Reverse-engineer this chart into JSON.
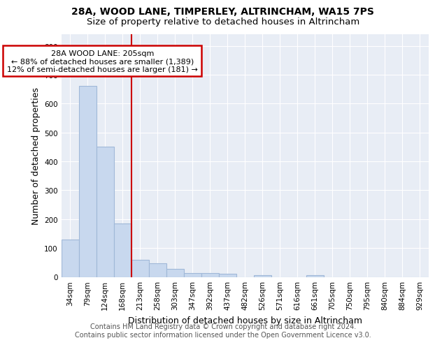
{
  "title_line1": "28A, WOOD LANE, TIMPERLEY, ALTRINCHAM, WA15 7PS",
  "title_line2": "Size of property relative to detached houses in Altrincham",
  "xlabel": "Distribution of detached houses by size in Altrincham",
  "ylabel": "Number of detached properties",
  "bar_labels": [
    "34sqm",
    "79sqm",
    "124sqm",
    "168sqm",
    "213sqm",
    "258sqm",
    "303sqm",
    "347sqm",
    "392sqm",
    "437sqm",
    "482sqm",
    "526sqm",
    "571sqm",
    "616sqm",
    "661sqm",
    "705sqm",
    "750sqm",
    "795sqm",
    "840sqm",
    "884sqm",
    "929sqm"
  ],
  "bar_values": [
    130,
    660,
    452,
    184,
    60,
    48,
    27,
    13,
    13,
    10,
    0,
    7,
    0,
    0,
    7,
    0,
    0,
    0,
    0,
    0,
    0
  ],
  "bar_color": "#c8d8ee",
  "bar_edge_color": "#a0b8d8",
  "vline_color": "#cc0000",
  "annotation_text": "28A WOOD LANE: 205sqm\n← 88% of detached houses are smaller (1,389)\n12% of semi-detached houses are larger (181) →",
  "annotation_box_color": "#ffffff",
  "annotation_box_edge": "#cc0000",
  "ylim": [
    0,
    840
  ],
  "yticks": [
    0,
    100,
    200,
    300,
    400,
    500,
    600,
    700,
    800
  ],
  "background_color": "#e8edf5",
  "grid_color": "#ffffff",
  "footer_text": "Contains HM Land Registry data © Crown copyright and database right 2024.\nContains public sector information licensed under the Open Government Licence v3.0.",
  "title_fontsize": 10,
  "subtitle_fontsize": 9.5,
  "axis_label_fontsize": 9,
  "tick_fontsize": 7.5,
  "annotation_fontsize": 8,
  "footer_fontsize": 7
}
